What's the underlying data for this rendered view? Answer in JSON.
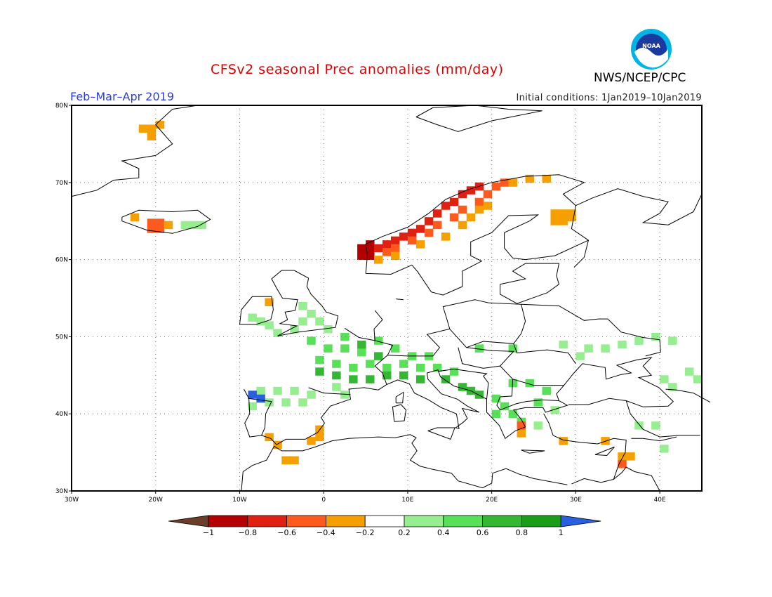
{
  "title": "CFSv2 seasonal Prec anomalies (mm/day)",
  "period": "Feb–Mar–Apr 2019",
  "initial_conditions": "Initial conditions: 1Jan2019–10Jan2019",
  "agency": "NWS/NCEP/CPC",
  "logo_text": "NOAA",
  "map": {
    "lon_range": [
      -30,
      45
    ],
    "lat_range": [
      30,
      80
    ],
    "lon_ticks": [
      {
        "value": -30,
        "label": "30W"
      },
      {
        "value": -20,
        "label": "20W"
      },
      {
        "value": -10,
        "label": "10W"
      },
      {
        "value": 0,
        "label": "0"
      },
      {
        "value": 10,
        "label": "10E"
      },
      {
        "value": 20,
        "label": "20E"
      },
      {
        "value": 30,
        "label": "30E"
      },
      {
        "value": 40,
        "label": "40E"
      }
    ],
    "lat_ticks": [
      {
        "value": 30,
        "label": "30N"
      },
      {
        "value": 40,
        "label": "40N"
      },
      {
        "value": 50,
        "label": "50N"
      },
      {
        "value": 60,
        "label": "60N"
      },
      {
        "value": 70,
        "label": "70N"
      },
      {
        "value": 80,
        "label": "80N"
      }
    ],
    "grid": "dotted"
  },
  "colorbar": {
    "labels": [
      "-1",
      "-0.8",
      "-0.6",
      "-0.4",
      "-0.2",
      "0.2",
      "0.4",
      "0.6",
      "0.8",
      "1"
    ],
    "colors": [
      "#6b3e2a",
      "#b40000",
      "#e02010",
      "#ff5a1e",
      "#f5a000",
      "#ffffff",
      "#96ee90",
      "#58e058",
      "#34b834",
      "#1a9e1a",
      "#2860e0"
    ]
  },
  "anomaly_regions": [
    {
      "name": "norway-coast-dark",
      "value": -1.0,
      "cells": [
        [
          4.5,
          60.5
        ],
        [
          5.5,
          60.5
        ],
        [
          5.5,
          61.5
        ],
        [
          4.5,
          61.5
        ],
        [
          5.5,
          62.0
        ]
      ]
    },
    {
      "name": "norway-coast-red",
      "value": -0.8,
      "cells": [
        [
          6.5,
          61.5
        ],
        [
          7.5,
          62.0
        ],
        [
          8.5,
          62.5
        ],
        [
          9.5,
          63.0
        ],
        [
          10.5,
          63.5
        ],
        [
          11.5,
          64.0
        ],
        [
          12.5,
          65.0
        ],
        [
          13.5,
          66.0
        ],
        [
          14.5,
          67.0
        ],
        [
          15.5,
          67.5
        ],
        [
          16.5,
          68.5
        ],
        [
          17.5,
          69.0
        ],
        [
          18.5,
          69.5
        ]
      ]
    },
    {
      "name": "norway-inland-orange-red",
      "value": -0.6,
      "cells": [
        [
          7.5,
          61.0
        ],
        [
          8.5,
          61.5
        ],
        [
          10.5,
          62.5
        ],
        [
          12.5,
          63.5
        ],
        [
          13.5,
          64.5
        ],
        [
          15.5,
          65.5
        ],
        [
          16.5,
          66.5
        ],
        [
          18.5,
          67.5
        ],
        [
          19.5,
          68.5
        ],
        [
          20.5,
          69.5
        ],
        [
          21.5,
          70.0
        ]
      ]
    },
    {
      "name": "scandinavia-orange",
      "value": -0.4,
      "cells": [
        [
          6.5,
          60.0
        ],
        [
          8.5,
          60.5
        ],
        [
          11.5,
          62.0
        ],
        [
          14.5,
          63.0
        ],
        [
          16.5,
          64.5
        ],
        [
          17.5,
          65.5
        ],
        [
          18.5,
          66.5
        ],
        [
          19.5,
          67.0
        ],
        [
          22.5,
          70.0
        ],
        [
          24.5,
          70.5
        ],
        [
          26.5,
          70.5
        ]
      ]
    },
    {
      "name": "finland-orange",
      "value": -0.4,
      "cells": [
        [
          27.5,
          66.0
        ],
        [
          28.5,
          66.0
        ],
        [
          29.5,
          66.0
        ],
        [
          27.5,
          65.0
        ],
        [
          28.5,
          65.0
        ],
        [
          29.5,
          65.5
        ]
      ]
    },
    {
      "name": "iceland-red",
      "value": -0.6,
      "cells": [
        [
          -20.5,
          64.0
        ],
        [
          -19.5,
          64.0
        ],
        [
          -20.5,
          64.8
        ],
        [
          -19.5,
          64.8
        ]
      ]
    },
    {
      "name": "iceland-orange",
      "value": -0.4,
      "cells": [
        [
          -18.5,
          64.5
        ],
        [
          -22.5,
          65.5
        ]
      ]
    },
    {
      "name": "iceland-green",
      "value": 0.3,
      "cells": [
        [
          -16.5,
          64.5
        ],
        [
          -15.5,
          64.5
        ],
        [
          -14.5,
          64.5
        ]
      ]
    },
    {
      "name": "svalbard-orange",
      "value": -0.4,
      "cells": [
        [
          -21.5,
          77.0
        ],
        [
          -20.5,
          77.0
        ],
        [
          -19.5,
          77.5
        ],
        [
          -20.5,
          76.0
        ]
      ]
    },
    {
      "name": "ireland-orange",
      "value": -0.4,
      "cells": [
        [
          -6.5,
          54.5
        ]
      ]
    },
    {
      "name": "uk-green",
      "value": 0.3,
      "cells": [
        [
          -2.5,
          54.0
        ],
        [
          -1.5,
          53.0
        ],
        [
          -0.5,
          52.0
        ],
        [
          0.5,
          51.0
        ],
        [
          -2.5,
          52.0
        ],
        [
          -3.5,
          51.0
        ],
        [
          -7.5,
          52.0
        ],
        [
          -8.5,
          52.5
        ],
        [
          -6.5,
          51.5
        ],
        [
          -5.5,
          50.5
        ]
      ]
    },
    {
      "name": "france-green",
      "value": 0.4,
      "cells": [
        [
          -1.5,
          49.5
        ],
        [
          0.5,
          48.5
        ],
        [
          2.5,
          48.5
        ],
        [
          4.5,
          48.0
        ],
        [
          -0.5,
          47.0
        ],
        [
          1.5,
          46.5
        ],
        [
          3.5,
          46.0
        ],
        [
          5.5,
          46.5
        ],
        [
          7.5,
          46.0
        ],
        [
          9.5,
          46.5
        ],
        [
          11.5,
          46.0
        ],
        [
          13.5,
          46.0
        ],
        [
          15.5,
          45.5
        ],
        [
          2.5,
          50.0
        ],
        [
          6.5,
          49.5
        ],
        [
          8.5,
          48.5
        ],
        [
          10.5,
          47.5
        ],
        [
          12.5,
          47.5
        ]
      ]
    },
    {
      "name": "france-darkgreen",
      "value": 0.6,
      "cells": [
        [
          -0.5,
          45.5
        ],
        [
          1.5,
          45.0
        ],
        [
          3.5,
          44.5
        ],
        [
          5.5,
          44.5
        ],
        [
          7.5,
          45.0
        ],
        [
          9.5,
          45.0
        ],
        [
          11.5,
          44.5
        ],
        [
          16.5,
          43.5
        ],
        [
          17.5,
          43.0
        ],
        [
          18.5,
          42.5
        ],
        [
          14.5,
          44.5
        ],
        [
          6.5,
          47.5
        ],
        [
          4.5,
          49.0
        ]
      ]
    },
    {
      "name": "iberia-green",
      "value": 0.3,
      "cells": [
        [
          -7.5,
          43.0
        ],
        [
          -5.5,
          43.0
        ],
        [
          -3.5,
          43.0
        ],
        [
          -1.5,
          42.5
        ],
        [
          -6.5,
          41.5
        ],
        [
          -4.5,
          41.5
        ],
        [
          -2.5,
          41.5
        ],
        [
          1.5,
          43.5
        ],
        [
          2.5,
          42.5
        ],
        [
          -8.5,
          41.0
        ]
      ]
    },
    {
      "name": "iberia-blue",
      "value": 1.0,
      "cells": [
        [
          -8.5,
          42.5
        ],
        [
          -7.5,
          42.0
        ]
      ]
    },
    {
      "name": "balkans-green",
      "value": 0.4,
      "cells": [
        [
          20.5,
          42.0
        ],
        [
          21.5,
          41.0
        ],
        [
          22.5,
          40.0
        ],
        [
          23.5,
          39.0
        ],
        [
          20.5,
          40.0
        ],
        [
          22.5,
          44.0
        ],
        [
          24.5,
          44.0
        ],
        [
          26.5,
          43.0
        ],
        [
          25.5,
          41.5
        ],
        [
          18.5,
          48.5
        ],
        [
          22.5,
          48.5
        ]
      ]
    },
    {
      "name": "east-green",
      "value": 0.3,
      "cells": [
        [
          31.5,
          48.5
        ],
        [
          33.5,
          48.5
        ],
        [
          35.5,
          49.0
        ],
        [
          37.5,
          49.5
        ],
        [
          39.5,
          50.0
        ],
        [
          41.5,
          49.5
        ],
        [
          28.5,
          49.0
        ],
        [
          30.5,
          47.5
        ],
        [
          43.5,
          45.5
        ],
        [
          44.5,
          44.5
        ],
        [
          40.5,
          44.5
        ],
        [
          41.5,
          43.5
        ],
        [
          37.5,
          38.5
        ],
        [
          39.5,
          38.5
        ],
        [
          40.5,
          35.5
        ],
        [
          27.5,
          40.5
        ],
        [
          25.5,
          38.5
        ]
      ]
    },
    {
      "name": "iberia-orange",
      "value": -0.4,
      "cells": [
        [
          -6.5,
          37.0
        ],
        [
          -5.5,
          36.0
        ],
        [
          -4.5,
          34.0
        ],
        [
          -3.5,
          34.0
        ],
        [
          -1.5,
          36.5
        ],
        [
          -0.5,
          37.0
        ],
        [
          -0.5,
          38.0
        ]
      ]
    },
    {
      "name": "med-orange",
      "value": -0.4,
      "cells": [
        [
          23.5,
          37.5
        ],
        [
          28.5,
          36.5
        ],
        [
          33.5,
          36.5
        ],
        [
          35.5,
          34.5
        ],
        [
          36.5,
          34.5
        ]
      ]
    },
    {
      "name": "levant-red",
      "value": -0.6,
      "cells": [
        [
          35.5,
          33.5
        ],
        [
          23.5,
          38.5
        ]
      ]
    }
  ]
}
